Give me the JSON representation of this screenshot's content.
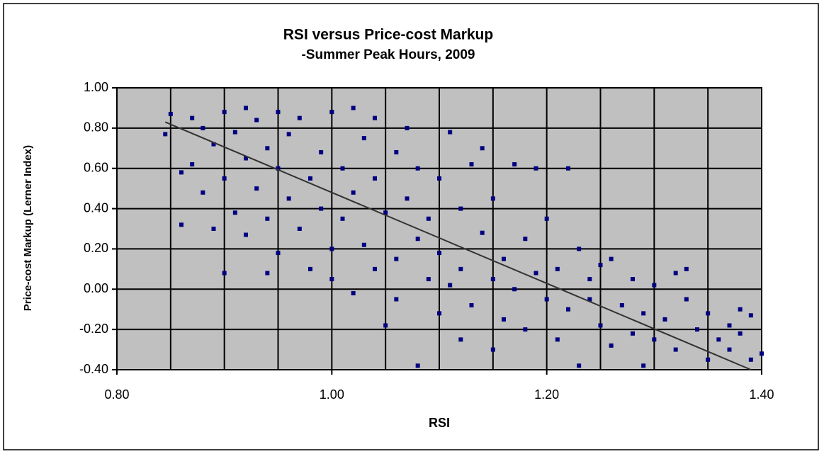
{
  "chart_data": {
    "type": "scatter",
    "title": "RSI versus Price-cost Markup",
    "subtitle": "-Summer Peak Hours, 2009",
    "x_label": "RSI",
    "y_label": "Price-cost Markup (Lerner Index)",
    "color": "#000080",
    "x": [
      0.845,
      0.85,
      0.86,
      0.86,
      0.87,
      0.87,
      0.88,
      0.88,
      0.89,
      0.89,
      0.9,
      0.9,
      0.9,
      0.91,
      0.91,
      0.92,
      0.92,
      0.92,
      0.93,
      0.93,
      0.94,
      0.94,
      0.94,
      0.95,
      0.95,
      0.95,
      0.96,
      0.96,
      0.97,
      0.97,
      0.98,
      0.98,
      0.99,
      0.99,
      1.0,
      1.0,
      1.0,
      1.01,
      1.01,
      1.02,
      1.02,
      1.02,
      1.03,
      1.03,
      1.04,
      1.04,
      1.04,
      1.05,
      1.05,
      1.06,
      1.06,
      1.06,
      1.07,
      1.07,
      1.08,
      1.08,
      1.08,
      1.09,
      1.09,
      1.1,
      1.1,
      1.1,
      1.11,
      1.11,
      1.12,
      1.12,
      1.12,
      1.13,
      1.13,
      1.14,
      1.14,
      1.15,
      1.15,
      1.15,
      1.16,
      1.16,
      1.17,
      1.17,
      1.18,
      1.18,
      1.19,
      1.19,
      1.2,
      1.2,
      1.21,
      1.21,
      1.22,
      1.22,
      1.23,
      1.23,
      1.24,
      1.24,
      1.25,
      1.25,
      1.26,
      1.26,
      1.27,
      1.28,
      1.28,
      1.29,
      1.29,
      1.3,
      1.3,
      1.31,
      1.32,
      1.32,
      1.33,
      1.33,
      1.34,
      1.35,
      1.35,
      1.36,
      1.37,
      1.37,
      1.38,
      1.38,
      1.39,
      1.4,
      1.39
    ],
    "values": [
      0.77,
      0.87,
      0.58,
      0.32,
      0.85,
      0.62,
      0.8,
      0.48,
      0.72,
      0.3,
      0.88,
      0.55,
      0.08,
      0.38,
      0.78,
      0.9,
      0.65,
      0.27,
      0.5,
      0.84,
      0.7,
      0.08,
      0.35,
      0.88,
      0.6,
      0.18,
      0.45,
      0.77,
      0.3,
      0.85,
      0.55,
      0.1,
      0.68,
      0.4,
      0.88,
      0.2,
      0.05,
      0.6,
      0.35,
      0.9,
      0.48,
      -0.02,
      0.75,
      0.22,
      0.55,
      0.1,
      0.85,
      0.38,
      -0.18,
      0.68,
      0.15,
      -0.05,
      0.45,
      0.8,
      0.25,
      -0.38,
      0.6,
      0.05,
      0.35,
      0.55,
      -0.12,
      0.18,
      0.78,
      0.02,
      0.4,
      -0.25,
      0.1,
      0.62,
      -0.08,
      0.28,
      0.7,
      0.05,
      -0.3,
      0.45,
      0.15,
      -0.15,
      0.62,
      0.0,
      0.25,
      -0.2,
      0.6,
      0.08,
      -0.05,
      0.35,
      -0.25,
      0.1,
      0.6,
      -0.1,
      0.2,
      -0.38,
      -0.05,
      0.05,
      -0.18,
      0.12,
      -0.28,
      0.15,
      -0.08,
      -0.22,
      0.05,
      -0.38,
      -0.12,
      0.02,
      -0.25,
      -0.15,
      -0.3,
      0.08,
      -0.05,
      0.1,
      -0.2,
      -0.12,
      -0.35,
      -0.25,
      -0.18,
      -0.3,
      -0.1,
      -0.22,
      -0.35,
      -0.32,
      -0.13
    ],
    "trendline": {
      "color": "#333333",
      "x": [
        0.845,
        1.39
      ],
      "values": [
        0.83,
        -0.4
      ]
    },
    "xlim": [
      0.8,
      1.4
    ],
    "ylim": [
      -0.4,
      1.0
    ],
    "xticks": [
      {
        "value": 0.8,
        "label": "0.80"
      },
      {
        "value": 1.0,
        "label": "1.00"
      },
      {
        "value": 1.2,
        "label": "1.20"
      },
      {
        "value": 1.4,
        "label": "1.40"
      }
    ],
    "x_grid": [
      0.85,
      0.9,
      0.95,
      1.0,
      1.05,
      1.1,
      1.15,
      1.2,
      1.25,
      1.3,
      1.35
    ],
    "yticks": [
      {
        "value": -0.4,
        "label": "-0.40"
      },
      {
        "value": -0.2,
        "label": "-0.20"
      },
      {
        "value": 0,
        "label": "0.00"
      },
      {
        "value": 0.2,
        "label": "0.20"
      },
      {
        "value": 0.4,
        "label": "0.40"
      },
      {
        "value": 0.6,
        "label": "0.60"
      },
      {
        "value": 0.8,
        "label": "0.80"
      },
      {
        "value": 1.0,
        "label": "1.00"
      }
    ],
    "grid": true
  }
}
